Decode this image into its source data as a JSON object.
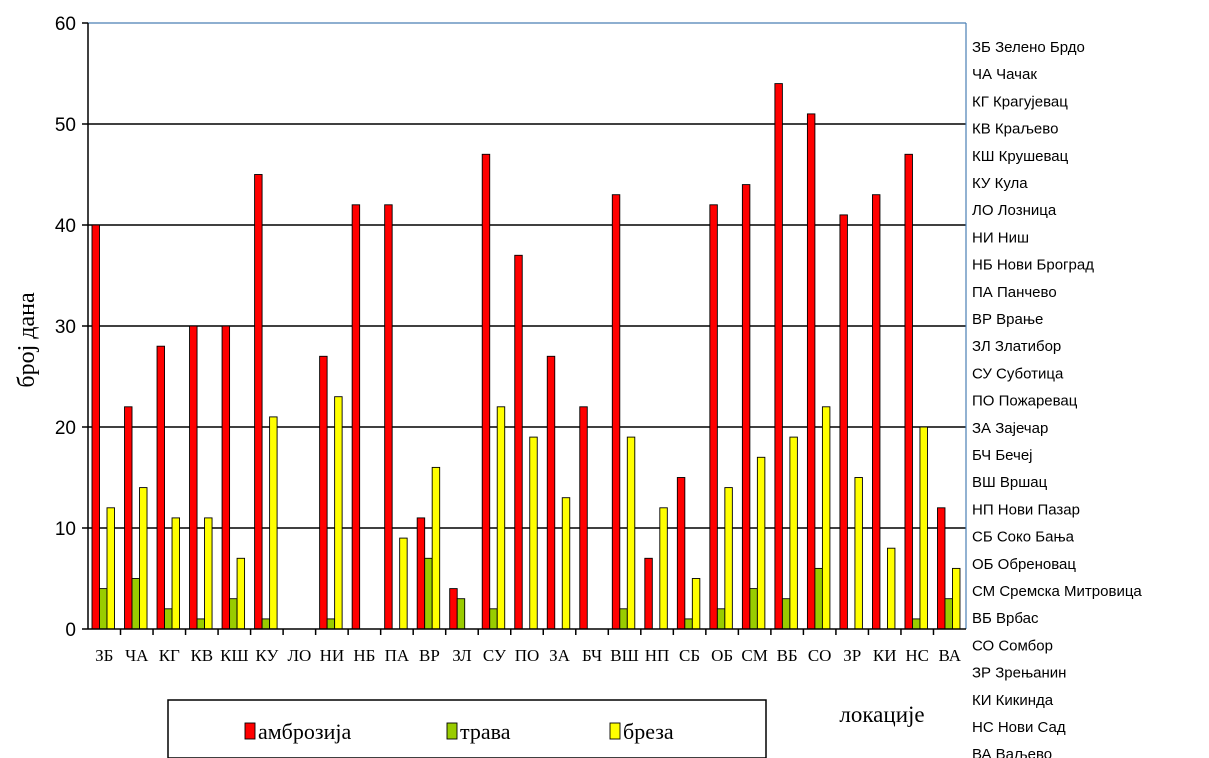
{
  "chart_data": {
    "type": "bar",
    "title": "",
    "ylabel": "број дана",
    "xlabel": "локације",
    "ylim": [
      0,
      60
    ],
    "yticks": [
      0,
      10,
      20,
      30,
      40,
      50,
      60
    ],
    "grid": true,
    "legend_position": "bottom",
    "categories": [
      "ЗБ",
      "ЧА",
      "КГ",
      "КВ",
      "КШ",
      "КУ",
      "ЛО",
      "НИ",
      "НБ",
      "ПА",
      "ВР",
      "ЗЛ",
      "СУ",
      "ПО",
      "ЗА",
      "БЧ",
      "ВШ",
      "НП",
      "СБ",
      "ОБ",
      "СМ",
      "ВБ",
      "СО",
      "ЗР",
      "КИ",
      "НС",
      "ВА"
    ],
    "series": [
      {
        "name": "амброзија",
        "color": "#ff0000",
        "values": [
          40,
          22,
          28,
          30,
          30,
          45,
          0,
          27,
          42,
          42,
          11,
          4,
          47,
          37,
          27,
          22,
          43,
          7,
          15,
          42,
          44,
          54,
          51,
          41,
          43,
          47,
          12
        ]
      },
      {
        "name": "трава",
        "color": "#99cc00",
        "values": [
          4,
          5,
          2,
          1,
          3,
          1,
          0,
          1,
          0,
          0,
          7,
          3,
          2,
          0,
          0,
          0,
          2,
          0,
          1,
          2,
          4,
          3,
          6,
          0,
          0,
          1,
          3
        ]
      },
      {
        "name": "бреза",
        "color": "#ffff00",
        "values": [
          12,
          14,
          11,
          11,
          7,
          21,
          0,
          23,
          0,
          9,
          16,
          0,
          22,
          19,
          13,
          0,
          19,
          12,
          5,
          14,
          17,
          19,
          22,
          15,
          8,
          20,
          6
        ]
      }
    ],
    "key_list": [
      "ЗБ Зелено Брдо",
      "ЧА Чачак",
      "КГ Крагујевац",
      "КВ Краљево",
      "КШ Крушевац",
      "КУ Кула",
      "ЛО Лозница",
      "НИ Ниш",
      "НБ Нови Броград",
      "ПА Панчево",
      "ВР Врање",
      "ЗЛ Златибор",
      "СУ Суботица",
      "ПО Пожаревац",
      "ЗА Зајечар",
      "БЧ Бечеј",
      "ВШ Вршац",
      "НП Нови Пазар",
      "СБ Соко Бања",
      "ОБ Обреновац",
      "СМ Сремска Митровица",
      "ВБ Врбас",
      "СО Сомбор",
      "ЗР Зрењанин",
      "КИ Кикинда",
      "НС Нови Сад",
      "ВА Ваљево"
    ]
  }
}
